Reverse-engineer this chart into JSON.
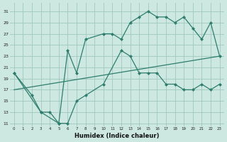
{
  "xlabel": "Humidex (Indice chaleur)",
  "bg_color": "#cce8e0",
  "grid_color": "#a0c8be",
  "line_color": "#2e7d6e",
  "xlim": [
    -0.5,
    23.5
  ],
  "ylim": [
    10.5,
    32.5
  ],
  "xticks": [
    0,
    1,
    2,
    3,
    4,
    5,
    6,
    7,
    8,
    9,
    10,
    11,
    12,
    13,
    14,
    15,
    16,
    17,
    18,
    19,
    20,
    21,
    22,
    23
  ],
  "yticks": [
    11,
    13,
    15,
    17,
    19,
    21,
    23,
    25,
    27,
    29,
    31
  ],
  "line1_x": [
    0,
    2,
    3,
    4,
    5,
    6,
    7,
    8,
    10,
    12,
    13,
    14,
    15,
    16,
    17,
    18,
    19,
    20,
    21,
    22,
    23
  ],
  "line1_y": [
    20,
    16,
    13,
    13,
    11,
    11,
    15,
    16,
    18,
    24,
    23,
    20,
    20,
    20,
    18,
    18,
    17,
    17,
    18,
    17,
    18
  ],
  "line2_x": [
    0,
    3,
    5,
    6,
    7,
    8,
    10,
    11,
    12,
    13,
    14,
    15,
    16,
    17,
    18,
    19,
    20,
    21,
    22,
    23
  ],
  "line2_y": [
    20,
    13,
    11,
    24,
    20,
    26,
    27,
    27,
    26,
    29,
    30,
    31,
    30,
    30,
    29,
    30,
    28,
    26,
    29,
    23
  ],
  "line3_x": [
    0,
    23
  ],
  "line3_y": [
    17,
    23
  ]
}
